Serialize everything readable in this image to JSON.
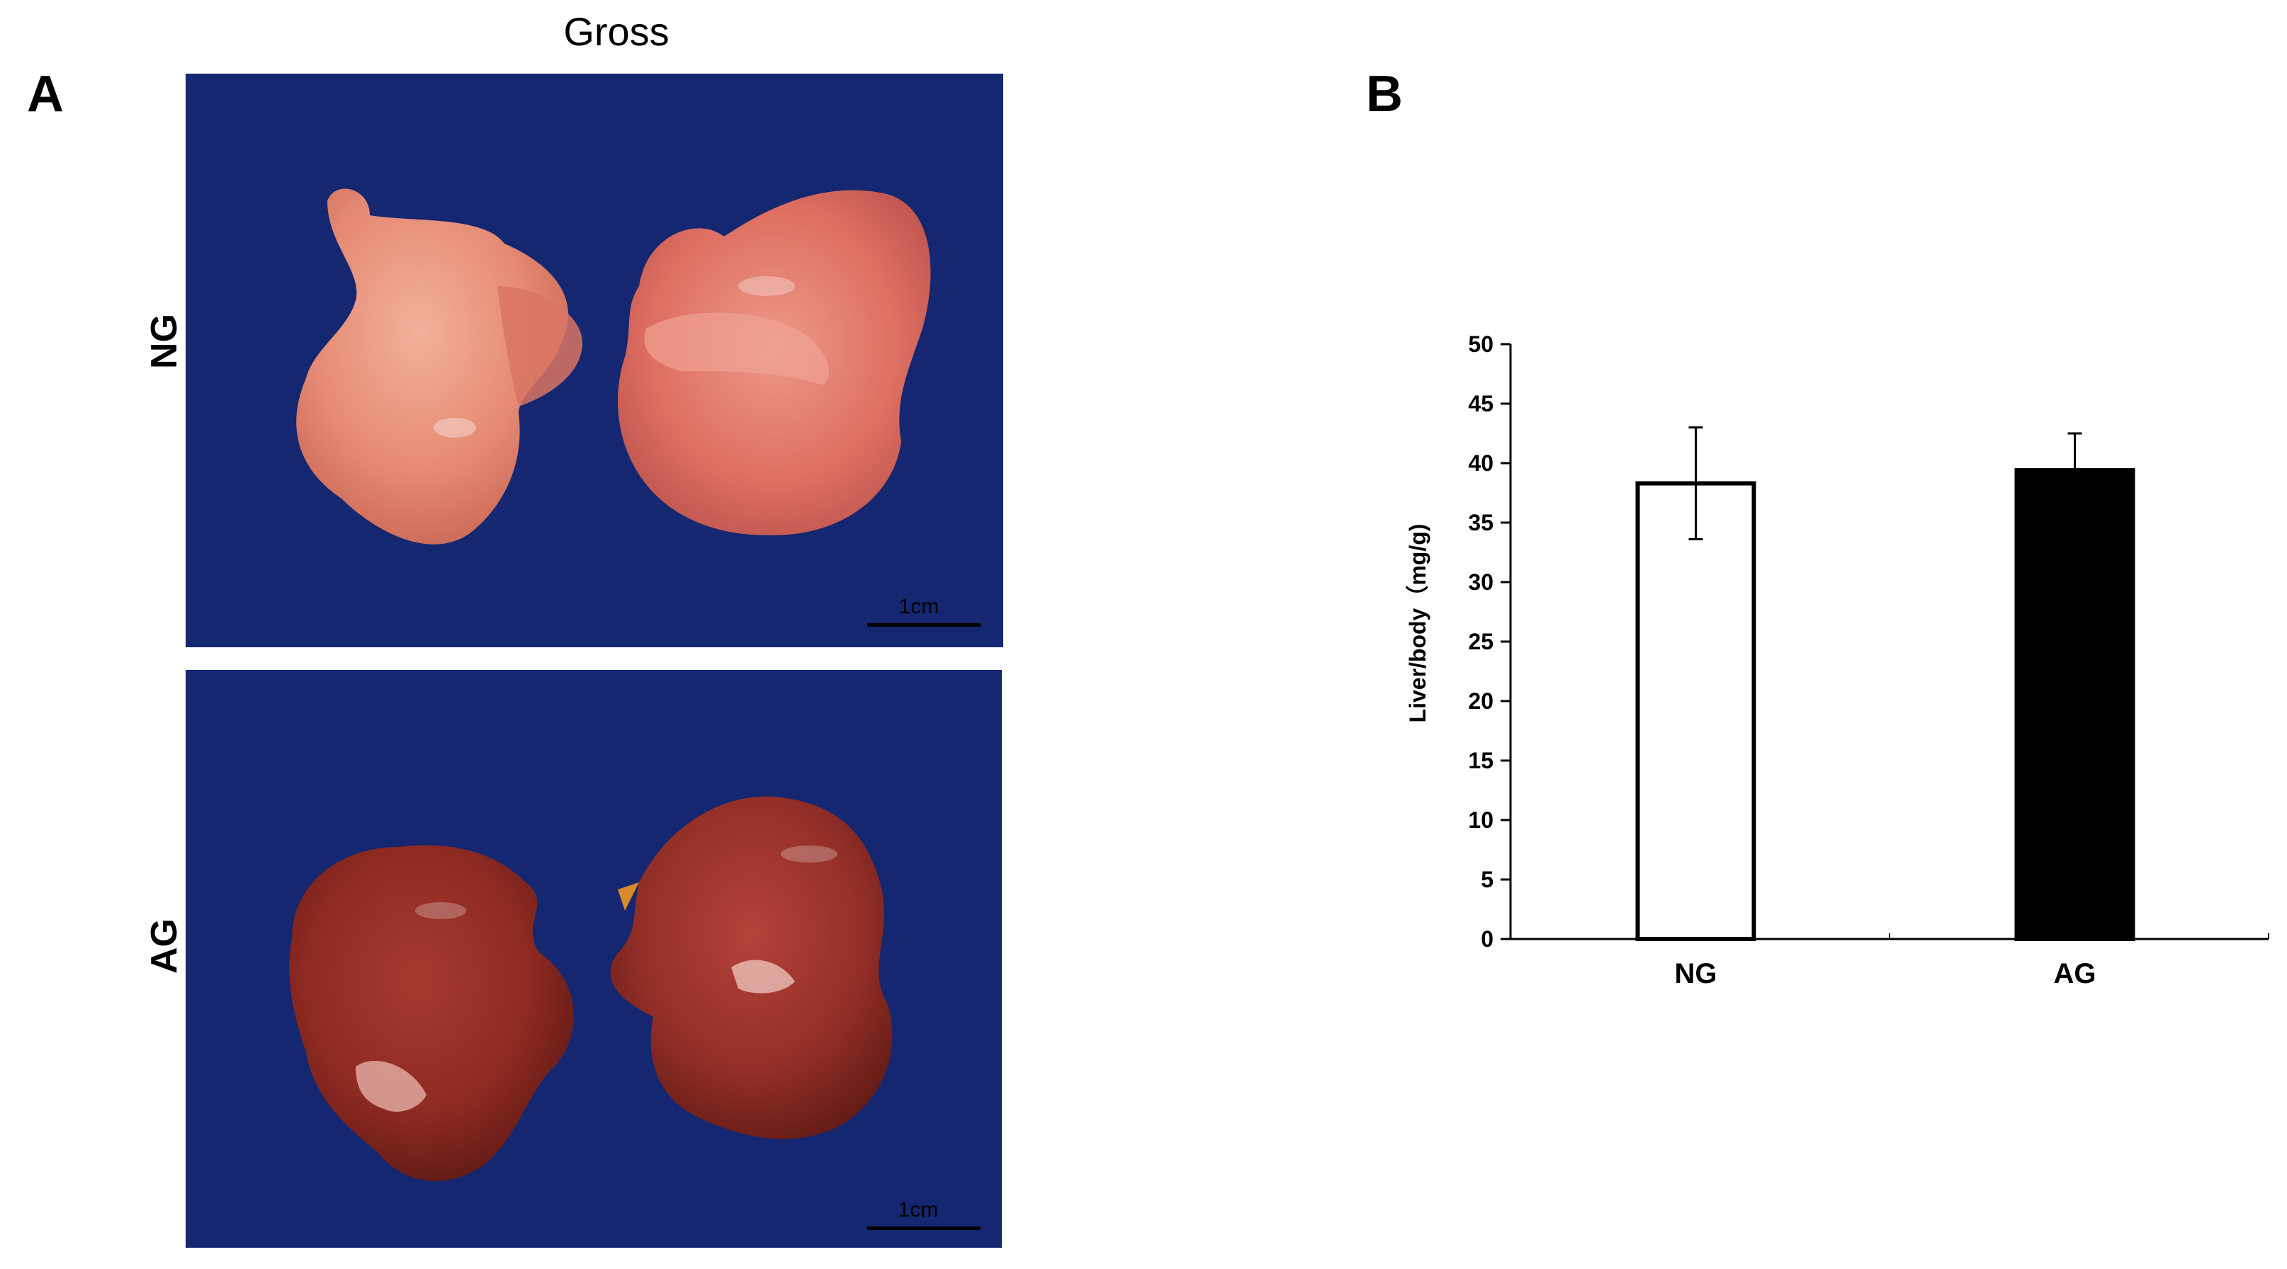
{
  "panels": {
    "a_letter": "A",
    "b_letter": "B",
    "gross_title": "Gross"
  },
  "photos": {
    "row_labels": [
      "NG",
      "AG"
    ],
    "scale_text": "1cm",
    "background_color": "#142770",
    "ng_tissue_color": "#e58b75",
    "ag_tissue_color": "#8e2a22"
  },
  "chart_data": {
    "type": "bar",
    "categories": [
      "NG",
      "AG"
    ],
    "values": [
      38.3,
      39.4
    ],
    "errors": [
      4.7,
      3.1
    ],
    "bar_colors": [
      "#ffffff",
      "#000000"
    ],
    "ylabel": "Liver/body（mg/g)",
    "xlabel": "",
    "ylim": [
      0,
      50
    ],
    "yticks": [
      "0",
      "5",
      "10",
      "15",
      "20",
      "25",
      "30",
      "35",
      "40",
      "45",
      "50"
    ],
    "grid": false,
    "legend": "none"
  }
}
